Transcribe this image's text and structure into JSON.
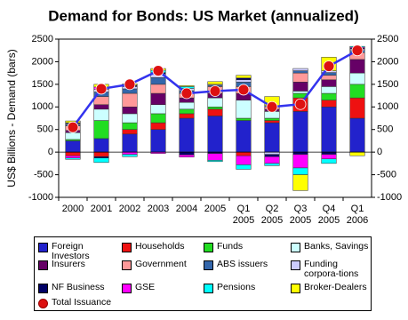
{
  "chart_data": {
    "type": "bar",
    "title": "Demand for Bonds: US Market (annualized)",
    "y_label": "US$ Billions - Demand (bars)",
    "categories": [
      "2000",
      "2001",
      "2002",
      "2003",
      "2004",
      "2005",
      "Q1 2005",
      "Q2 2005",
      "Q3 2005",
      "Q4 2005",
      "Q1 2006"
    ],
    "ylim": [
      -1000,
      2500
    ],
    "yticks": [
      -1000,
      -500,
      0,
      500,
      1000,
      1500,
      2000,
      2500
    ],
    "y2lim": [
      -1000,
      2500
    ],
    "y2ticks": [
      -1000,
      -500,
      0,
      500,
      1000,
      1500,
      2000,
      2500
    ],
    "series": [
      {
        "name": "Foreign Investors",
        "color": "#2222cc",
        "values": [
          250,
          300,
          400,
          500,
          750,
          800,
          700,
          650,
          900,
          1000,
          750
        ]
      },
      {
        "name": "Households",
        "color": "#ee1111",
        "values": [
          -80,
          -100,
          100,
          150,
          100,
          150,
          -80,
          50,
          300,
          150,
          450
        ]
      },
      {
        "name": "Funds",
        "color": "#22dd22",
        "values": [
          30,
          400,
          150,
          200,
          100,
          50,
          50,
          50,
          100,
          150,
          300
        ]
      },
      {
        "name": "Banks, Savings",
        "color": "#ccffff",
        "values": [
          150,
          250,
          200,
          200,
          150,
          200,
          400,
          150,
          50,
          150,
          250
        ]
      },
      {
        "name": "Insurers",
        "color": "#660066",
        "values": [
          50,
          100,
          150,
          250,
          100,
          100,
          150,
          50,
          200,
          150,
          300
        ]
      },
      {
        "name": "Government",
        "color": "#ff9999",
        "values": [
          100,
          180,
          300,
          200,
          100,
          150,
          150,
          50,
          200,
          100,
          150
        ]
      },
      {
        "name": "ABS issuers",
        "color": "#3366aa",
        "values": [
          30,
          100,
          100,
          150,
          60,
          30,
          100,
          30,
          50,
          60,
          50
        ]
      },
      {
        "name": "Funding corpora-tions",
        "color": "#ccccff",
        "values": [
          20,
          60,
          50,
          80,
          50,
          20,
          50,
          -50,
          50,
          40,
          30
        ]
      },
      {
        "name": "NF Business",
        "color": "#000066",
        "values": [
          20,
          -30,
          30,
          30,
          -60,
          -30,
          40,
          -50,
          -50,
          -50,
          20
        ]
      },
      {
        "name": "GSE",
        "color": "#ff00ff",
        "values": [
          -50,
          50,
          -50,
          -30,
          -50,
          -150,
          -200,
          -150,
          -300,
          -100,
          20
        ]
      },
      {
        "name": "Pensions",
        "color": "#00ffff",
        "values": [
          -30,
          -100,
          -50,
          50,
          40,
          -30,
          -100,
          -50,
          -150,
          -100,
          20
        ]
      },
      {
        "name": "Broker-Dealers",
        "color": "#ffff00",
        "values": [
          40,
          60,
          30,
          40,
          20,
          60,
          60,
          200,
          -350,
          300,
          -80
        ]
      },
      {
        "name": "Total Issuance",
        "type": "line",
        "axis": "y2",
        "color": "#3333ee",
        "marker_color": "#dd1111",
        "values": [
          550,
          1400,
          1500,
          1800,
          1300,
          1350,
          1380,
          1000,
          1060,
          1900,
          2250
        ]
      }
    ]
  }
}
